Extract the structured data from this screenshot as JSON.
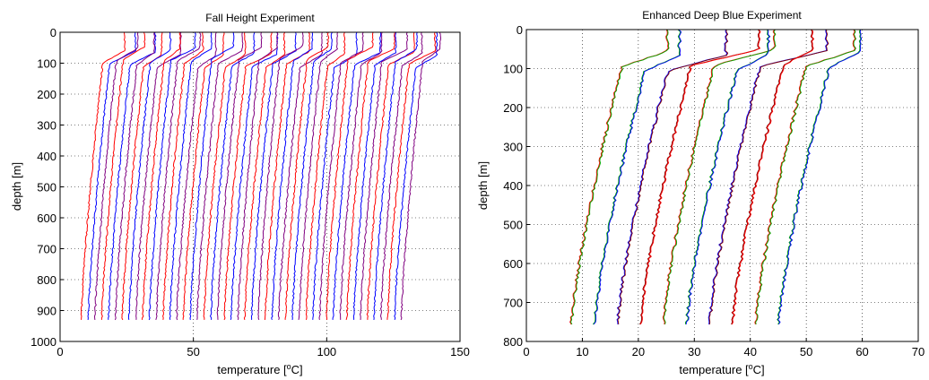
{
  "chart_data": [
    {
      "type": "line",
      "title": "Fall Height Experiment",
      "xlabel": "temperature [",
      "xlabel_sup": "o",
      "xlabel_tail": "C]",
      "ylabel": "depth [m]",
      "xlim": [
        0,
        150
      ],
      "ylim": [
        1000,
        0
      ],
      "xticks": [
        0,
        50,
        100,
        150
      ],
      "yticks": [
        0,
        100,
        200,
        300,
        400,
        500,
        600,
        700,
        800,
        900,
        1000
      ],
      "grid": true,
      "colors": [
        "#ff0000",
        "#0000ff",
        "#800080"
      ],
      "profile_count": 48,
      "offset_range": [
        8,
        128
      ],
      "profile_max_depth": 930
    },
    {
      "type": "line",
      "title": "Enhanced Deep Blue Experiment",
      "xlabel": "temperature [",
      "xlabel_sup": "o",
      "xlabel_tail": "C]",
      "ylabel": "depth [m]",
      "xlim": [
        0,
        70
      ],
      "ylim": [
        800,
        0
      ],
      "xticks": [
        0,
        10,
        20,
        30,
        40,
        50,
        60,
        70
      ],
      "yticks": [
        0,
        100,
        200,
        300,
        400,
        500,
        600,
        700,
        800
      ],
      "grid": true,
      "colors": [
        "#ff0000",
        "#00aa00",
        "#0000ff",
        "#800000"
      ],
      "profile_count": 10,
      "offset_range": [
        8,
        45
      ],
      "profile_max_depth": 760
    }
  ]
}
